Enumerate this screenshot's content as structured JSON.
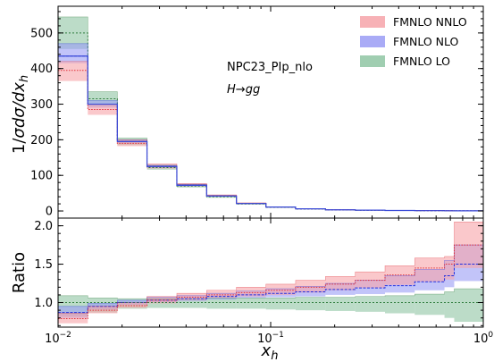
{
  "chart_data": {
    "type": "area",
    "annotation": {
      "line1": "NPC23_PIp_nlo",
      "line2": "H→gg",
      "line2_main": "H",
      "line2_arrow": "→",
      "line2_tail": "gg"
    },
    "x_scale": "log",
    "x_range": [
      0.01,
      1
    ],
    "x_ticks": [
      {
        "value": 0.01,
        "base": "10",
        "exp": "−2"
      },
      {
        "value": 0.1,
        "base": "10",
        "exp": "−1"
      },
      {
        "value": 1,
        "base": "10",
        "exp": "0"
      }
    ],
    "xlabel": "x_h",
    "xlabel_parts": {
      "main": "x",
      "sub": "h"
    },
    "bin_edges": [
      0.01,
      0.0138,
      0.019,
      0.0262,
      0.0362,
      0.05,
      0.069,
      0.095,
      0.131,
      0.181,
      0.25,
      0.345,
      0.476,
      0.657,
      0.73,
      1.0
    ],
    "top_panel": {
      "ylabel": "1/σdσ/dx_h",
      "ylabel_parts": {
        "lead": "1/",
        "sigma1": "σ",
        "mid": "d",
        "sigma2": "σ",
        "d2": "/d",
        "x": "x",
        "sub": "h"
      },
      "ylim": [
        -20,
        575
      ],
      "yticks": [
        0,
        100,
        200,
        300,
        400,
        500
      ],
      "grid": false,
      "legend_position": "top-right",
      "series": [
        {
          "name": "FMNLO LO",
          "color": "#8fc5a3",
          "line_color": "#2f7d3e",
          "central": [
            500,
            315,
            195,
            122,
            70,
            40,
            20,
            10,
            5.5,
            3,
            2,
            1.2,
            0.8,
            0.5,
            0.3
          ],
          "lower": [
            455,
            295,
            185,
            116,
            66,
            37,
            18,
            9,
            4.8,
            2.6,
            1.7,
            1,
            0.7,
            0.4,
            0.2
          ],
          "upper": [
            545,
            335,
            205,
            128,
            74,
            43,
            22,
            11,
            6.2,
            3.4,
            2.3,
            1.4,
            0.9,
            0.6,
            0.4
          ]
        },
        {
          "name": "FMNLO NLO",
          "color": "#9a9cf5",
          "line_color": "#1f2fe0",
          "central": [
            435,
            300,
            195,
            125,
            72,
            42,
            21,
            11,
            6,
            3.3,
            2.2,
            1.4,
            0.9,
            0.6,
            0.4
          ],
          "lower": [
            415,
            290,
            190,
            121,
            69,
            40,
            20,
            10.4,
            5.6,
            3.1,
            2,
            1.3,
            0.8,
            0.5,
            0.3
          ],
          "upper": [
            470,
            310,
            200,
            128,
            75,
            44,
            22,
            11.6,
            6.4,
            3.5,
            2.4,
            1.5,
            1,
            0.7,
            0.5
          ]
        },
        {
          "name": "FMNLO NNLO",
          "color": "#f6a3a9",
          "line_color": "#e0303a",
          "central": [
            395,
            285,
            190,
            125,
            73,
            42,
            21,
            11,
            6,
            3.3,
            2.2,
            1.4,
            0.9,
            0.6,
            0.4
          ],
          "lower": [
            365,
            270,
            182,
            119,
            69,
            40,
            20,
            10.4,
            5.6,
            3.1,
            2,
            1.3,
            0.8,
            0.5,
            0.3
          ],
          "upper": [
            420,
            300,
            200,
            132,
            77,
            45,
            23,
            11.8,
            6.5,
            3.6,
            2.4,
            1.6,
            1.1,
            0.8,
            0.6
          ]
        }
      ]
    },
    "bottom_panel": {
      "ylabel": "Ratio",
      "ylim": [
        0.68,
        2.1
      ],
      "yticks": [
        1.0,
        1.5,
        2.0
      ],
      "ytick_labels": [
        "1.0",
        "1.5",
        "2.0"
      ],
      "reference_line": 1.0,
      "series": [
        {
          "name": "FMNLO LO",
          "color": "#8fc5a3",
          "line_color": "#2f7d3e",
          "central": [
            1,
            1,
            1,
            1,
            1,
            1,
            1,
            1,
            1,
            1,
            1,
            1,
            1,
            1,
            1
          ],
          "lower": [
            0.82,
            0.87,
            0.92,
            0.93,
            0.93,
            0.92,
            0.92,
            0.91,
            0.9,
            0.89,
            0.88,
            0.86,
            0.84,
            0.8,
            0.75
          ],
          "upper": [
            1.09,
            1.06,
            1.05,
            1.05,
            1.05,
            1.06,
            1.06,
            1.06,
            1.07,
            1.07,
            1.08,
            1.09,
            1.11,
            1.14,
            1.18
          ]
        },
        {
          "name": "FMNLO NLO",
          "color": "#9a9cf5",
          "line_color": "#1f2fe0",
          "central": [
            0.87,
            0.95,
            1,
            1.03,
            1.05,
            1.08,
            1.1,
            1.12,
            1.14,
            1.17,
            1.19,
            1.22,
            1.27,
            1.35,
            1.5
          ],
          "lower": [
            0.8,
            0.91,
            0.97,
            1,
            1.02,
            1.04,
            1.06,
            1.07,
            1.08,
            1.1,
            1.11,
            1.13,
            1.16,
            1.2,
            1.28
          ],
          "upper": [
            0.95,
            0.99,
            1.03,
            1.07,
            1.09,
            1.12,
            1.15,
            1.18,
            1.21,
            1.25,
            1.29,
            1.35,
            1.43,
            1.55,
            1.75
          ]
        },
        {
          "name": "FMNLO NNLO",
          "color": "#f6a3a9",
          "line_color": "#e0303a",
          "central": [
            0.79,
            0.9,
            0.96,
            1.03,
            1.07,
            1.1,
            1.13,
            1.16,
            1.2,
            1.24,
            1.29,
            1.36,
            1.45,
            1.5,
            1.75
          ],
          "lower": [
            0.73,
            0.86,
            0.93,
            0.99,
            1.03,
            1.06,
            1.08,
            1.1,
            1.13,
            1.16,
            1.19,
            1.23,
            1.27,
            1.3,
            1.45
          ],
          "upper": [
            0.86,
            0.95,
            1.0,
            1.08,
            1.12,
            1.16,
            1.2,
            1.24,
            1.29,
            1.34,
            1.4,
            1.48,
            1.58,
            1.6,
            2.05
          ]
        }
      ]
    },
    "legend": [
      {
        "label": "FMNLO NNLO",
        "color": "#f6a3a9"
      },
      {
        "label": "FMNLO NLO",
        "color": "#9a9cf5"
      },
      {
        "label": "FMNLO LO",
        "color": "#8fc5a3"
      }
    ]
  }
}
